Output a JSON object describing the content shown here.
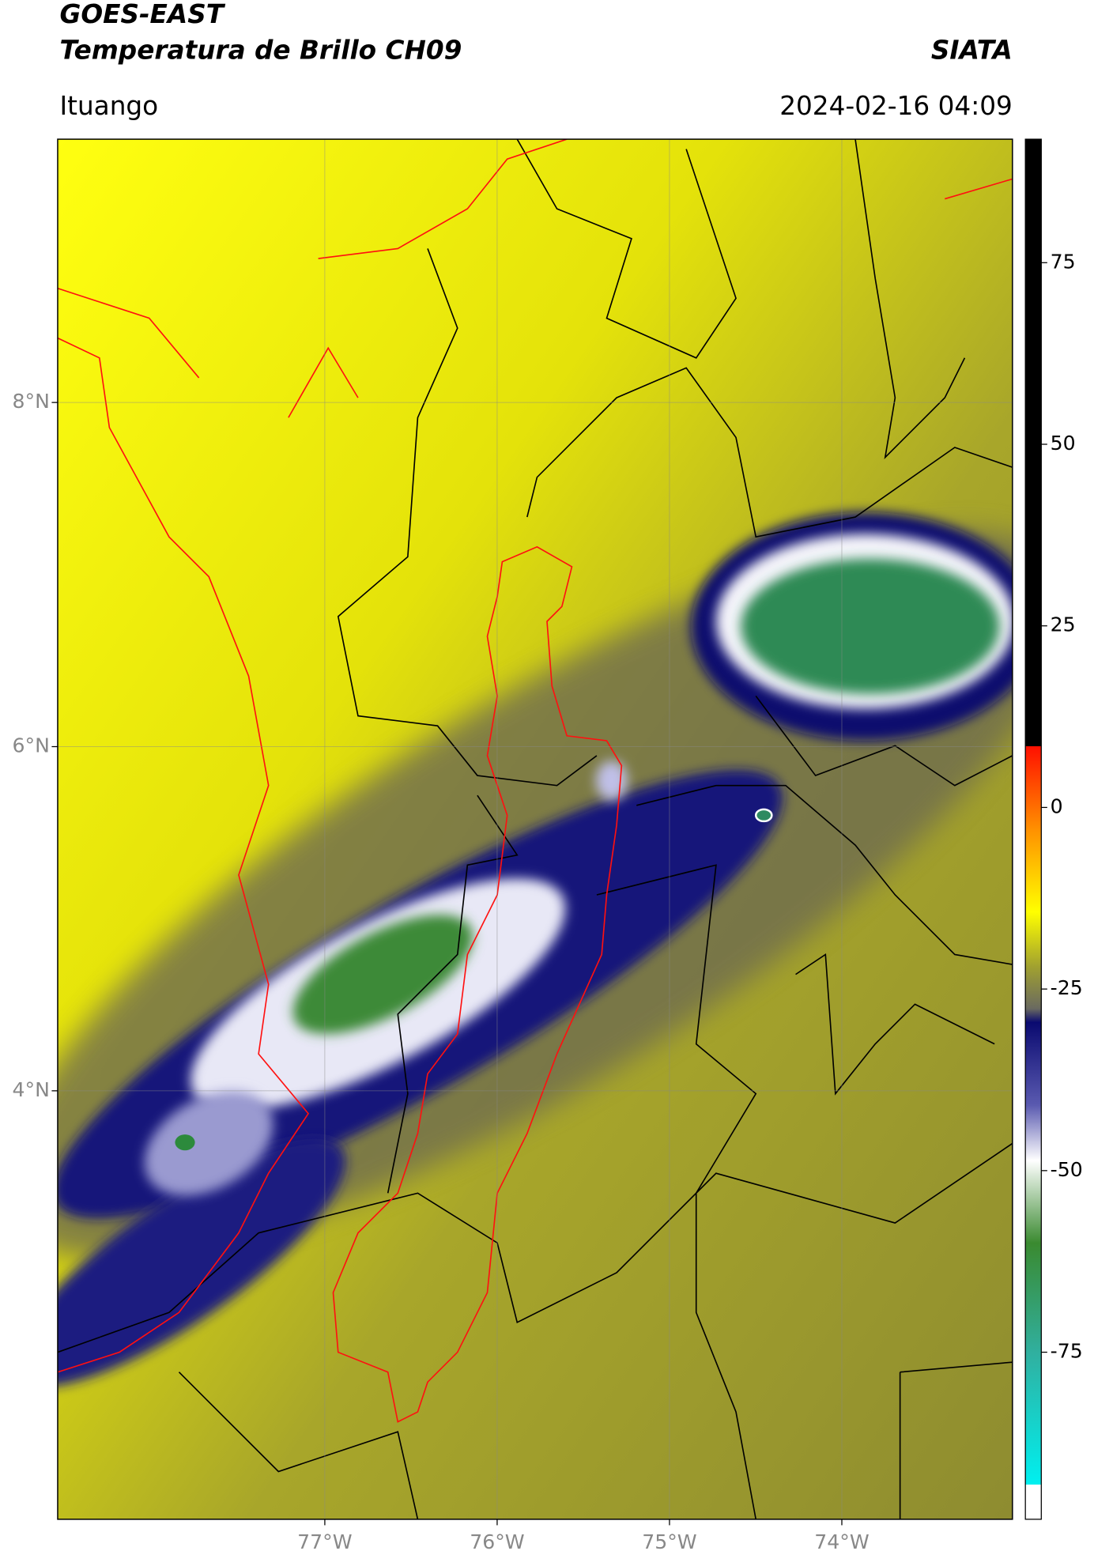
{
  "header": {
    "title": "GOES-EAST",
    "subtitle": "Temperatura de Brillo CH09",
    "organization": "SIATA",
    "location": "Ituango",
    "datetime": "2024-02-16 04:09"
  },
  "map": {
    "xlim": [
      -78.55,
      -73.01
    ],
    "ylim": [
      1.51,
      9.53
    ],
    "xticks": [
      {
        "value": -77,
        "label": "77°W"
      },
      {
        "value": -76,
        "label": "76°W"
      },
      {
        "value": -75,
        "label": "75°W"
      },
      {
        "value": -74,
        "label": "74°W"
      }
    ],
    "yticks": [
      {
        "value": 8,
        "label": "8°N"
      },
      {
        "value": 6,
        "label": "6°N"
      },
      {
        "value": 4,
        "label": "4°N"
      }
    ],
    "grid": true
  },
  "colorbar": {
    "lim": [
      -98,
      92
    ],
    "ticks": [
      75,
      50,
      25,
      0,
      -25,
      -50,
      -75
    ]
  }
}
